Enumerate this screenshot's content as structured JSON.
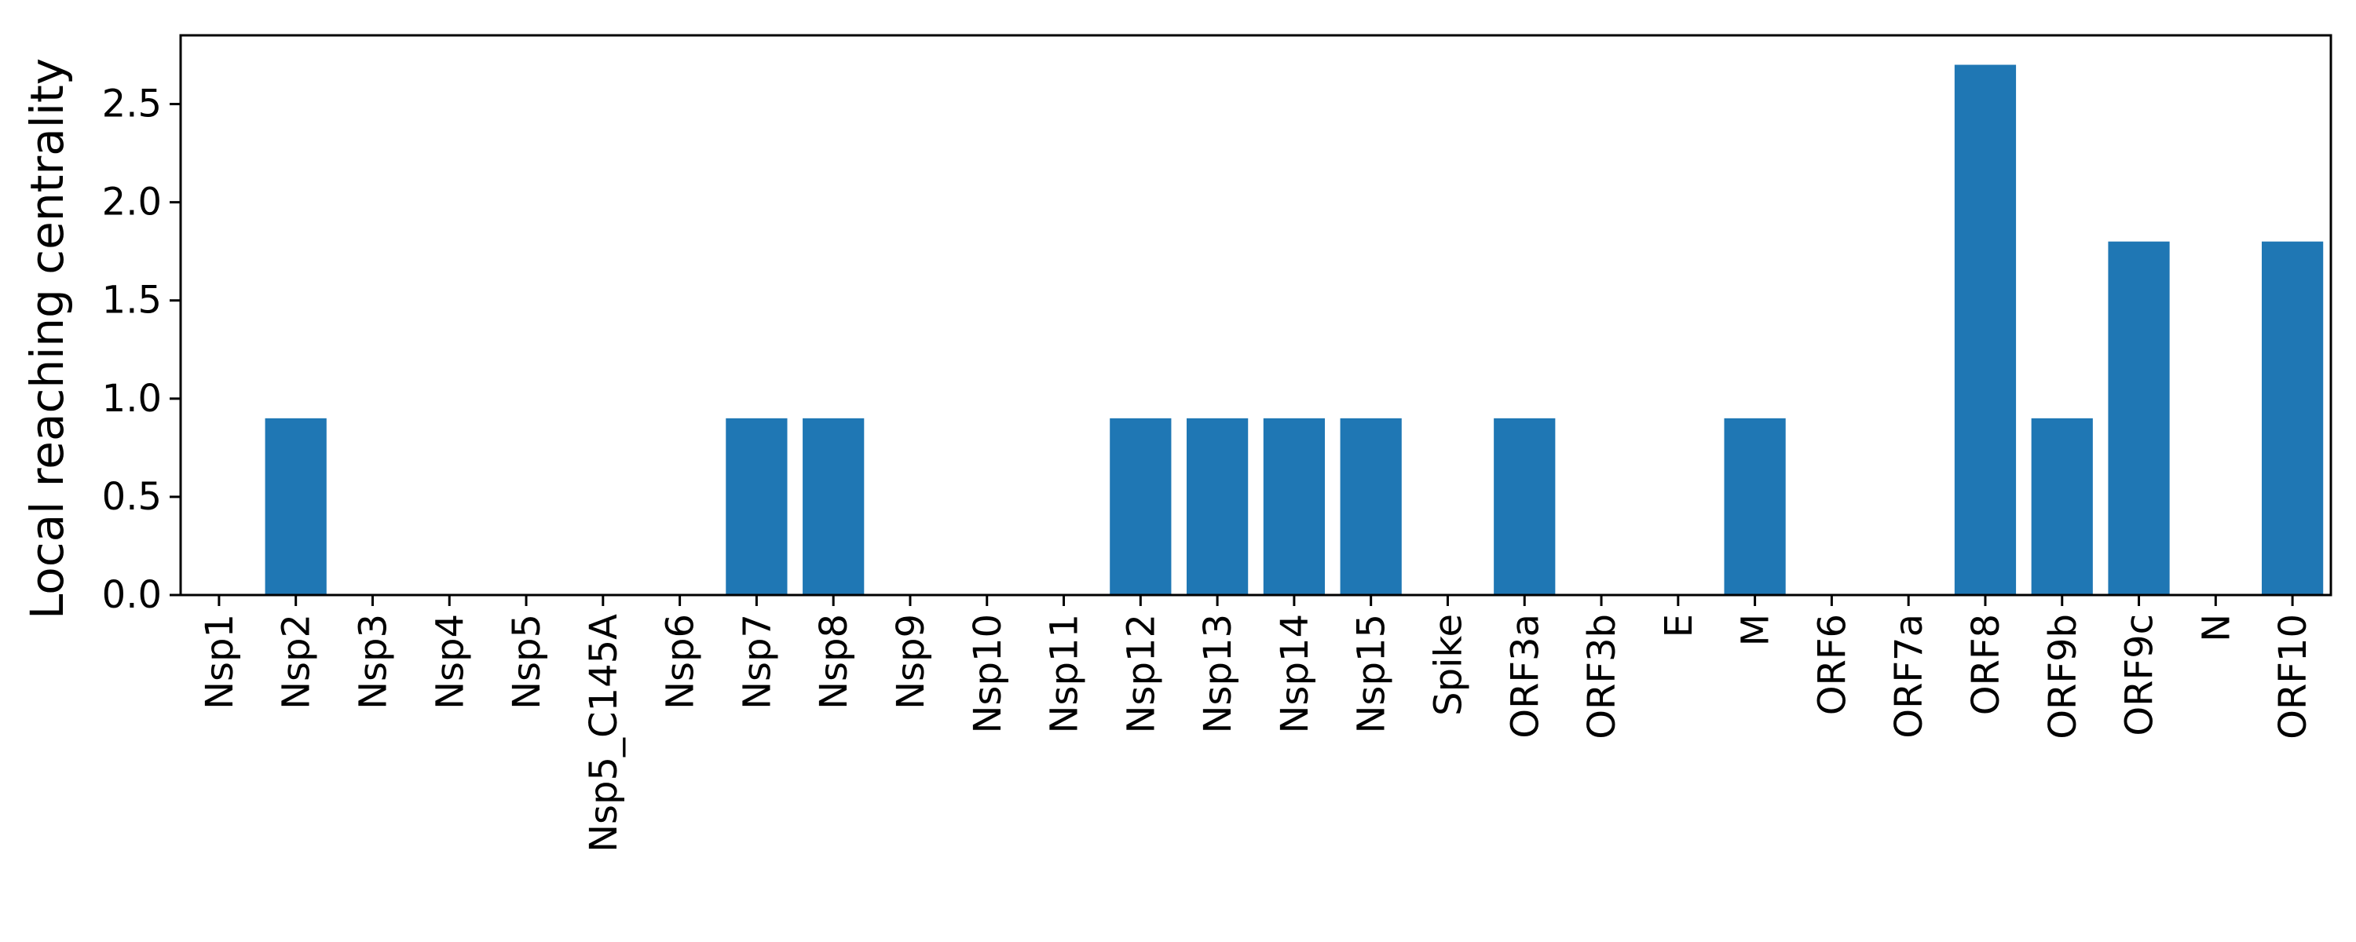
{
  "chart_data": {
    "type": "bar",
    "title": "",
    "xlabel": "",
    "ylabel": "Local reaching centrality",
    "ylim": [
      0,
      2.85
    ],
    "yticks": [
      0.0,
      0.5,
      1.0,
      1.5,
      2.0,
      2.5
    ],
    "ytick_labels": [
      "0.0",
      "0.5",
      "1.0",
      "1.5",
      "2.0",
      "2.5"
    ],
    "grid": false,
    "legend": "none",
    "bar_color": "#1f77b4",
    "categories": [
      "Nsp1",
      "Nsp2",
      "Nsp3",
      "Nsp4",
      "Nsp5",
      "Nsp5_C145A",
      "Nsp6",
      "Nsp7",
      "Nsp8",
      "Nsp9",
      "Nsp10",
      "Nsp11",
      "Nsp12",
      "Nsp13",
      "Nsp14",
      "Nsp15",
      "Spike",
      "ORF3a",
      "ORF3b",
      "E",
      "M",
      "ORF6",
      "ORF7a",
      "ORF8",
      "ORF9b",
      "ORF9c",
      "N",
      "ORF10"
    ],
    "values": [
      0,
      0.9,
      0,
      0,
      0,
      0,
      0,
      0.9,
      0.9,
      0,
      0,
      0,
      0.9,
      0.9,
      0.9,
      0.9,
      0,
      0.9,
      0,
      0,
      0.9,
      0,
      0,
      2.7,
      0.9,
      1.8,
      0,
      1.8
    ]
  }
}
